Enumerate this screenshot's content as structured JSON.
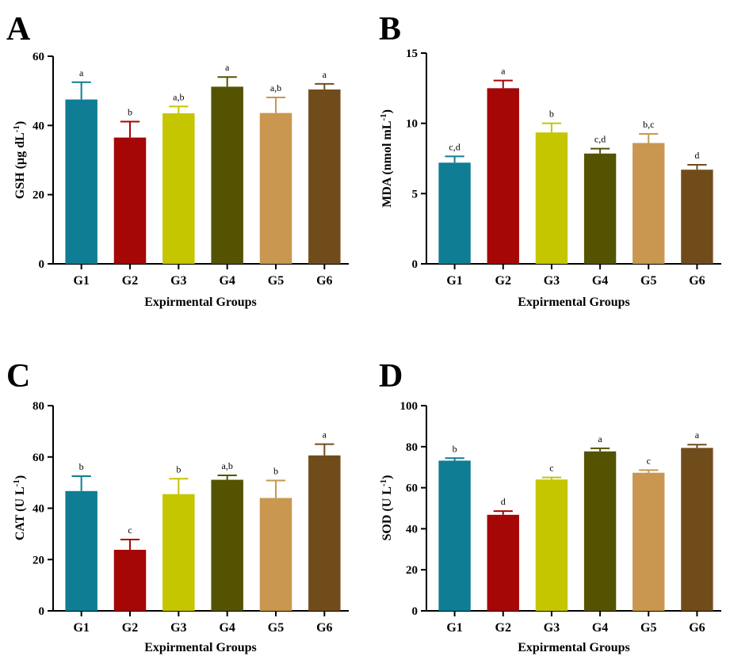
{
  "figure": {
    "colors": [
      "#0f7d94",
      "#a50606",
      "#c5c500",
      "#545301",
      "#c9974f",
      "#714c1b"
    ],
    "panels": [
      {
        "letter": "A",
        "ylabel_main": "GSH (µg dL",
        "ylabel_sup": "-1",
        "ylabel_end": ")"
      },
      {
        "letter": "B",
        "ylabel_main": "MDA (nmol mL",
        "ylabel_sup": "-1",
        "ylabel_end": ")"
      },
      {
        "letter": "C",
        "ylabel_main": "CAT (U L",
        "ylabel_sup": "-1",
        "ylabel_end": ")"
      },
      {
        "letter": "D",
        "ylabel_main": "SOD (U L",
        "ylabel_sup": "-1",
        "ylabel_end": ")"
      }
    ]
  },
  "chart_data": [
    {
      "type": "bar",
      "panel": "A",
      "categories": [
        "G1",
        "G2",
        "G3",
        "G4",
        "G5",
        "G6"
      ],
      "values": [
        47.5,
        36.5,
        43.5,
        51.2,
        43.6,
        50.4
      ],
      "error": [
        5.0,
        4.6,
        2.0,
        2.8,
        4.5,
        1.6
      ],
      "significance": [
        "a",
        "b",
        "a,b",
        "a",
        "a,b",
        "a"
      ],
      "xlabel": "Expirmental Groups",
      "ylabel": "GSH (µg dL-1)",
      "ylim": [
        0,
        60
      ],
      "yticks": [
        0,
        20,
        40,
        60
      ],
      "grid": false,
      "legend": "none"
    },
    {
      "type": "bar",
      "panel": "B",
      "categories": [
        "G1",
        "G2",
        "G3",
        "G4",
        "G5",
        "G6"
      ],
      "values": [
        7.2,
        12.5,
        9.35,
        7.85,
        8.6,
        6.7
      ],
      "error": [
        0.45,
        0.55,
        0.65,
        0.35,
        0.65,
        0.35
      ],
      "significance": [
        "c,d",
        "a",
        "b",
        "c,d",
        "b,c",
        "d"
      ],
      "xlabel": "Expirmental Groups",
      "ylabel": "MDA (nmol mL-1)",
      "ylim": [
        0,
        15
      ],
      "yticks": [
        0,
        5,
        10,
        15
      ],
      "grid": false,
      "legend": "none"
    },
    {
      "type": "bar",
      "panel": "C",
      "categories": [
        "G1",
        "G2",
        "G3",
        "G4",
        "G5",
        "G6"
      ],
      "values": [
        46.7,
        23.8,
        45.5,
        51.1,
        44.0,
        60.6
      ],
      "error": [
        5.8,
        4.0,
        6.0,
        1.7,
        6.8,
        4.4
      ],
      "significance": [
        "b",
        "c",
        "b",
        "a,b",
        "b",
        "a"
      ],
      "xlabel": "Expirmental Groups",
      "ylabel": "CAT (U L-1)",
      "ylim": [
        0,
        80
      ],
      "yticks": [
        0,
        20,
        40,
        60,
        80
      ],
      "grid": false,
      "legend": "none"
    },
    {
      "type": "bar",
      "panel": "D",
      "categories": [
        "G1",
        "G2",
        "G3",
        "G4",
        "G5",
        "G6"
      ],
      "values": [
        73.2,
        46.8,
        64.0,
        77.7,
        67.3,
        79.4
      ],
      "error": [
        1.2,
        1.8,
        1.0,
        1.5,
        1.3,
        1.6
      ],
      "significance": [
        "b",
        "d",
        "c",
        "a",
        "c",
        "a"
      ],
      "xlabel": "Expirmental Groups",
      "ylabel": "SOD (U L-1)",
      "ylim": [
        0,
        100
      ],
      "yticks": [
        0,
        20,
        40,
        60,
        80,
        100
      ],
      "grid": false,
      "legend": "none"
    }
  ]
}
